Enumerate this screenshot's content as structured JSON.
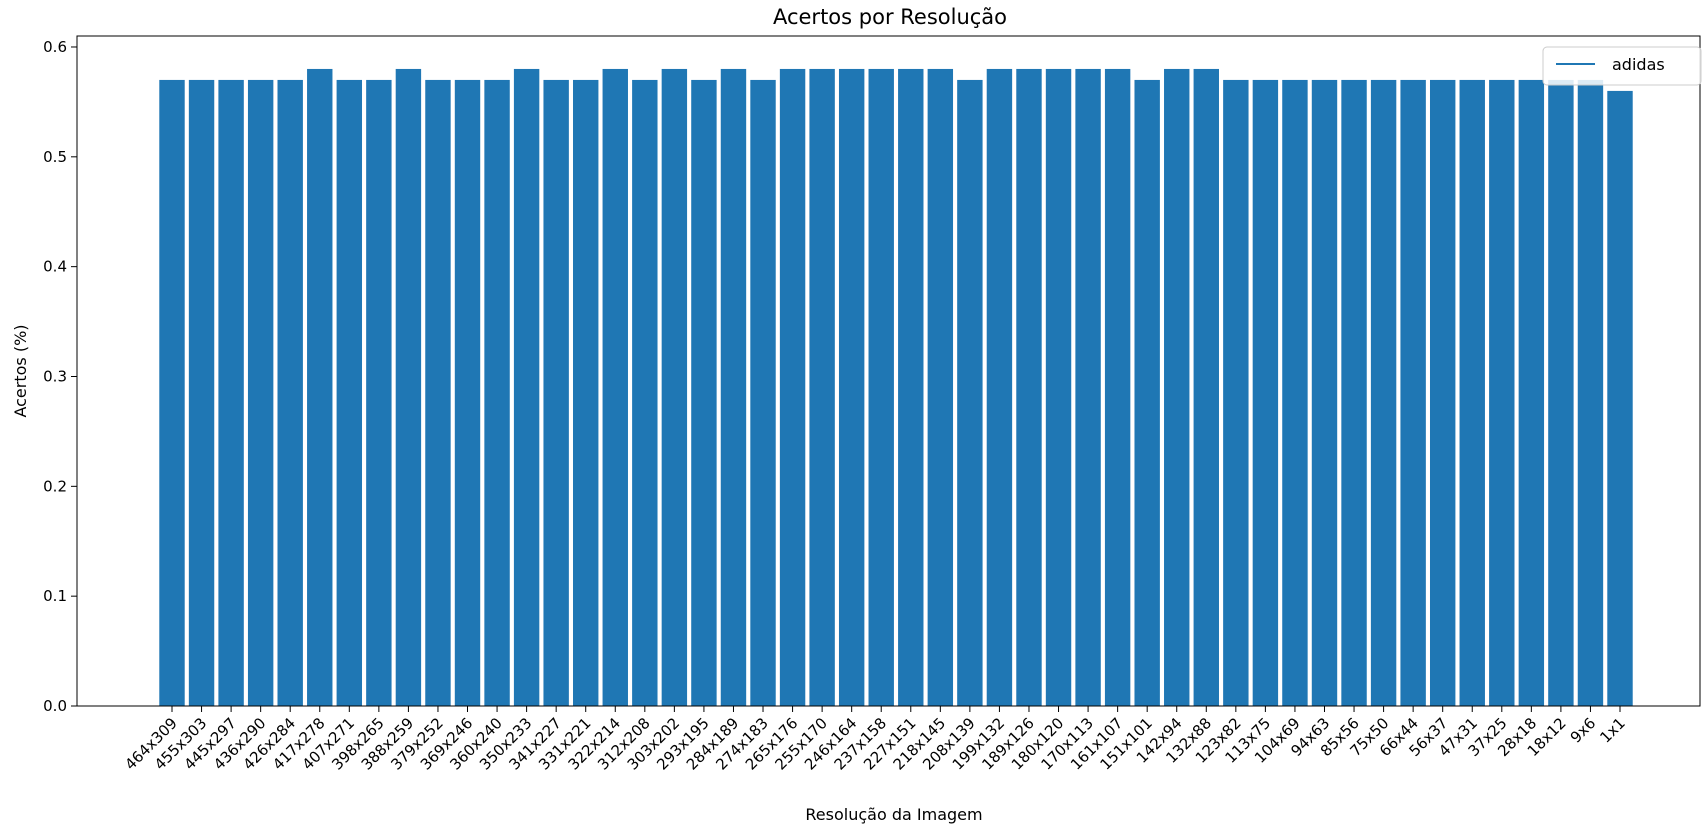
{
  "chart_data": {
    "type": "bar",
    "title": "Acertos por Resolução",
    "xlabel": "Resolução da Imagem",
    "ylabel": "Acertos (%)",
    "ylim": [
      0,
      0.61
    ],
    "yticks": [
      "0.0",
      "0.1",
      "0.2",
      "0.3",
      "0.4",
      "0.5",
      "0.6"
    ],
    "grid": false,
    "legend_position": "top-right",
    "legend_label": "adidas",
    "bar_color": "#1f77b4",
    "categories": [
      "464x309",
      "455x303",
      "445x297",
      "436x290",
      "426x284",
      "417x278",
      "407x271",
      "398x265",
      "388x259",
      "379x252",
      "369x246",
      "360x240",
      "350x233",
      "341x227",
      "331x221",
      "322x214",
      "312x208",
      "303x202",
      "293x195",
      "284x189",
      "274x183",
      "265x176",
      "255x170",
      "246x164",
      "237x158",
      "227x151",
      "218x145",
      "208x139",
      "199x132",
      "189x126",
      "180x120",
      "170x113",
      "161x107",
      "151x101",
      "142x94",
      "132x88",
      "123x82",
      "113x75",
      "104x69",
      "94x63",
      "85x56",
      "75x50",
      "66x44",
      "56x37",
      "47x31",
      "37x25",
      "28x18",
      "18x12",
      "9x6",
      "1x1"
    ],
    "values": [
      0.57,
      0.57,
      0.57,
      0.57,
      0.57,
      0.58,
      0.57,
      0.57,
      0.58,
      0.57,
      0.57,
      0.57,
      0.58,
      0.57,
      0.57,
      0.58,
      0.57,
      0.58,
      0.57,
      0.58,
      0.57,
      0.58,
      0.58,
      0.58,
      0.58,
      0.58,
      0.58,
      0.57,
      0.58,
      0.58,
      0.58,
      0.58,
      0.58,
      0.57,
      0.58,
      0.58,
      0.57,
      0.57,
      0.57,
      0.57,
      0.57,
      0.57,
      0.57,
      0.57,
      0.57,
      0.57,
      0.57,
      0.57,
      0.57,
      0.56
    ]
  }
}
